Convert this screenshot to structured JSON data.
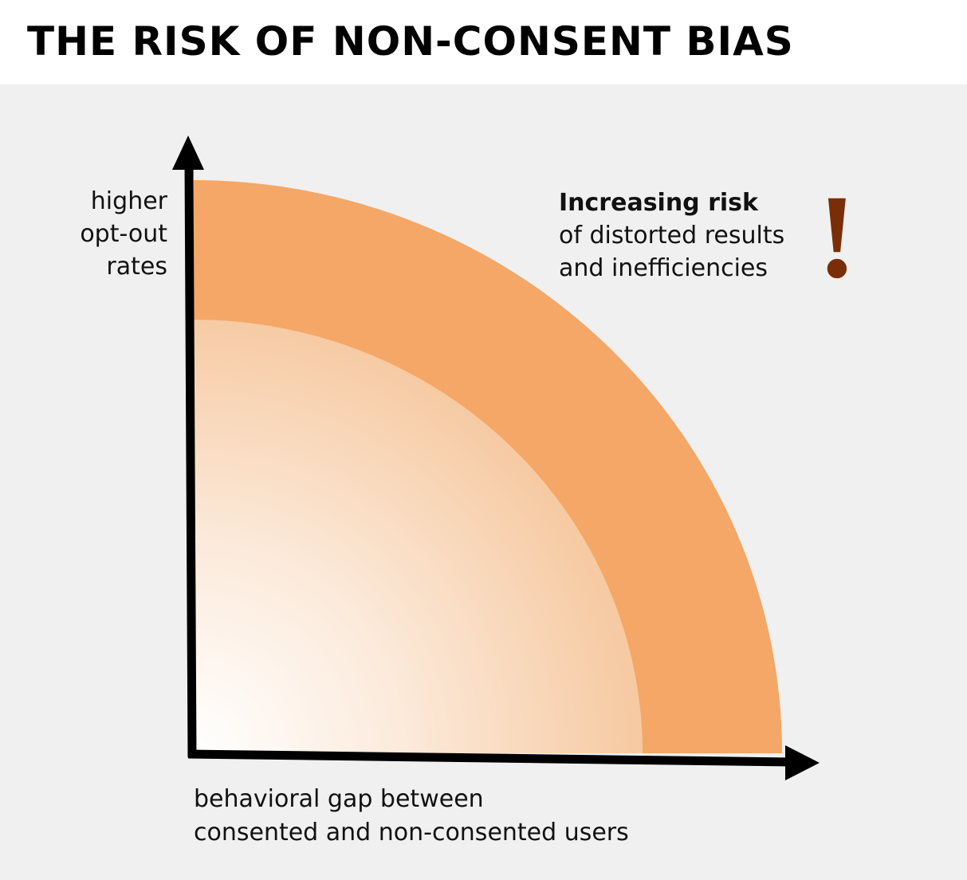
{
  "title": "THE RISK OF NON-CONSENT BIAS",
  "y_axis": {
    "label_lines": [
      "higher",
      "opt-out",
      "rates"
    ]
  },
  "x_axis": {
    "label_lines": [
      "behavioral gap between",
      "consented and non-consented users"
    ]
  },
  "risk_note": {
    "heading": "Increasing risk",
    "lines": [
      "of distorted results",
      "and inefficiencies"
    ],
    "mark": "!"
  },
  "colors": {
    "background": "#f1f0f0",
    "outer_band": "#f4a767",
    "inner_gradient_start": "#ffffff",
    "inner_gradient_end": "#f6c9a1",
    "axis": "#000000",
    "exclamation": "#7a2e07"
  }
}
